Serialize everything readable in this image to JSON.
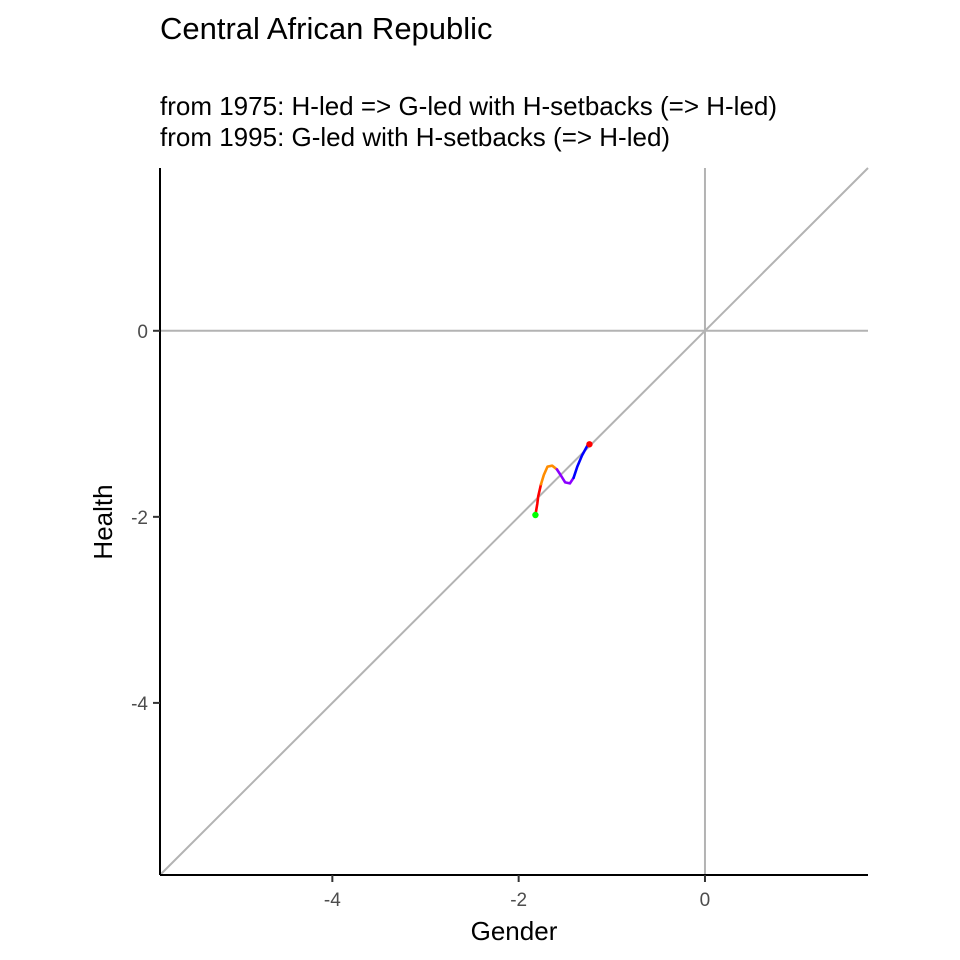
{
  "chart_data": {
    "type": "line",
    "title": "Central African Republic",
    "subtitle_lines": [
      "from 1975:  H-led => G-led with H-setbacks (=> H-led)",
      "from 1995:  G-led with H-setbacks (=> H-led)"
    ],
    "xlabel": "Gender",
    "ylabel": "Health",
    "xlim": [
      -5.85,
      1.75
    ],
    "ylim": [
      -5.85,
      1.75
    ],
    "x_ticks": [
      -4,
      -2,
      0
    ],
    "y_ticks": [
      0,
      -2,
      -4
    ],
    "reference_lines": [
      "x = 0",
      "y = 0",
      "y = x"
    ],
    "grid": false,
    "reference_color": "#b3b3b3",
    "series": [
      {
        "color": "#ff0000",
        "points": [
          [
            -1.82,
            -1.98
          ],
          [
            -1.8,
            -1.86
          ],
          [
            -1.79,
            -1.78
          ],
          [
            -1.76,
            -1.65
          ]
        ]
      },
      {
        "color": "#ff8c00",
        "points": [
          [
            -1.76,
            -1.65
          ],
          [
            -1.73,
            -1.55
          ],
          [
            -1.69,
            -1.46
          ],
          [
            -1.64,
            -1.45
          ],
          [
            -1.59,
            -1.49
          ]
        ]
      },
      {
        "color": "#8b00ff",
        "points": [
          [
            -1.59,
            -1.49
          ],
          [
            -1.55,
            -1.55
          ],
          [
            -1.5,
            -1.63
          ],
          [
            -1.45,
            -1.64
          ],
          [
            -1.41,
            -1.58
          ]
        ]
      },
      {
        "color": "#0000ff",
        "points": [
          [
            -1.41,
            -1.58
          ],
          [
            -1.37,
            -1.46
          ],
          [
            -1.32,
            -1.34
          ],
          [
            -1.26,
            -1.23
          ]
        ]
      }
    ],
    "start_point": {
      "x": -1.82,
      "y": -1.98,
      "color": "#00ff00"
    },
    "end_point": {
      "x": -1.24,
      "y": -1.22,
      "color": "#ff0000"
    }
  }
}
